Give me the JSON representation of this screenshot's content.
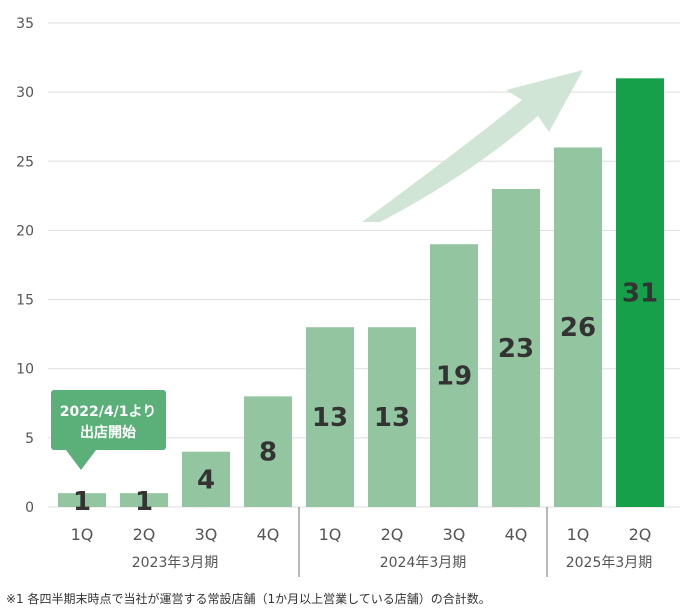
{
  "chart_data": {
    "type": "bar",
    "categories": [
      "1Q",
      "2Q",
      "3Q",
      "4Q",
      "1Q",
      "2Q",
      "3Q",
      "4Q",
      "1Q",
      "2Q"
    ],
    "values": [
      1,
      1,
      4,
      8,
      13,
      13,
      19,
      23,
      26,
      31
    ],
    "data_labels": [
      "1",
      "1",
      "4",
      "8",
      "13",
      "13",
      "19",
      "23",
      "26",
      "31"
    ],
    "groups": [
      {
        "label": "2023年3月期",
        "start": 0,
        "end": 3
      },
      {
        "label": "2024年3月期",
        "start": 4,
        "end": 7
      },
      {
        "label": "2025年3月期",
        "start": 8,
        "end": 9
      }
    ],
    "highlight_index": 9,
    "ylim": [
      0,
      35
    ],
    "yticks": [
      "0",
      "5",
      "10",
      "15",
      "20",
      "25",
      "30",
      "35"
    ],
    "grid": true,
    "colors": {
      "bar": "#93c5a0",
      "highlight": "#16a04a",
      "callout": "#5bb079",
      "arrow": "#cfe4d4",
      "grid": "#dddddd",
      "axis_text": "#555555",
      "label_text": "#333333"
    },
    "callout": {
      "line1": "2022/4/1より",
      "line2": "出店開始",
      "bar_index": 0
    },
    "trend_arrow": true
  },
  "footnote": "※1 各四半期末時点で当社が運営する常設店舗（1か月以上営業している店舗）の合計数。"
}
